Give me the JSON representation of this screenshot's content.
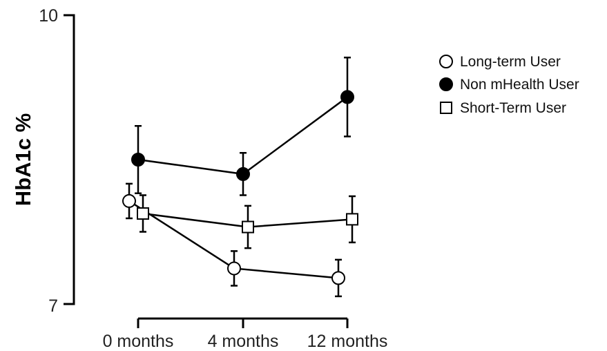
{
  "chart_data": {
    "type": "line",
    "title": "",
    "xlabel": "",
    "ylabel": "HbA1c %",
    "categories": [
      "0 months",
      "4 months",
      "12 months"
    ],
    "yticks": [
      "10",
      "7"
    ],
    "ylim": [
      7,
      10
    ],
    "grid": false,
    "legend_position": "top-right",
    "series": [
      {
        "name": "Long-term User",
        "marker": "circle-open",
        "values": [
          8.07,
          7.37,
          7.27
        ],
        "error": [
          0.18,
          0.18,
          0.19
        ]
      },
      {
        "name": "Non mHealth User",
        "marker": "circle-filled",
        "values": [
          8.5,
          8.35,
          9.15
        ],
        "error": [
          0.35,
          0.22,
          0.41
        ]
      },
      {
        "name": "Short-Term User",
        "marker": "square-open",
        "values": [
          7.94,
          7.8,
          7.88
        ],
        "error": [
          0.19,
          0.22,
          0.24
        ]
      }
    ],
    "colors": {
      "axis": "#000000",
      "marker_fill_open": "#ffffff",
      "marker_fill_filled": "#000000"
    }
  }
}
